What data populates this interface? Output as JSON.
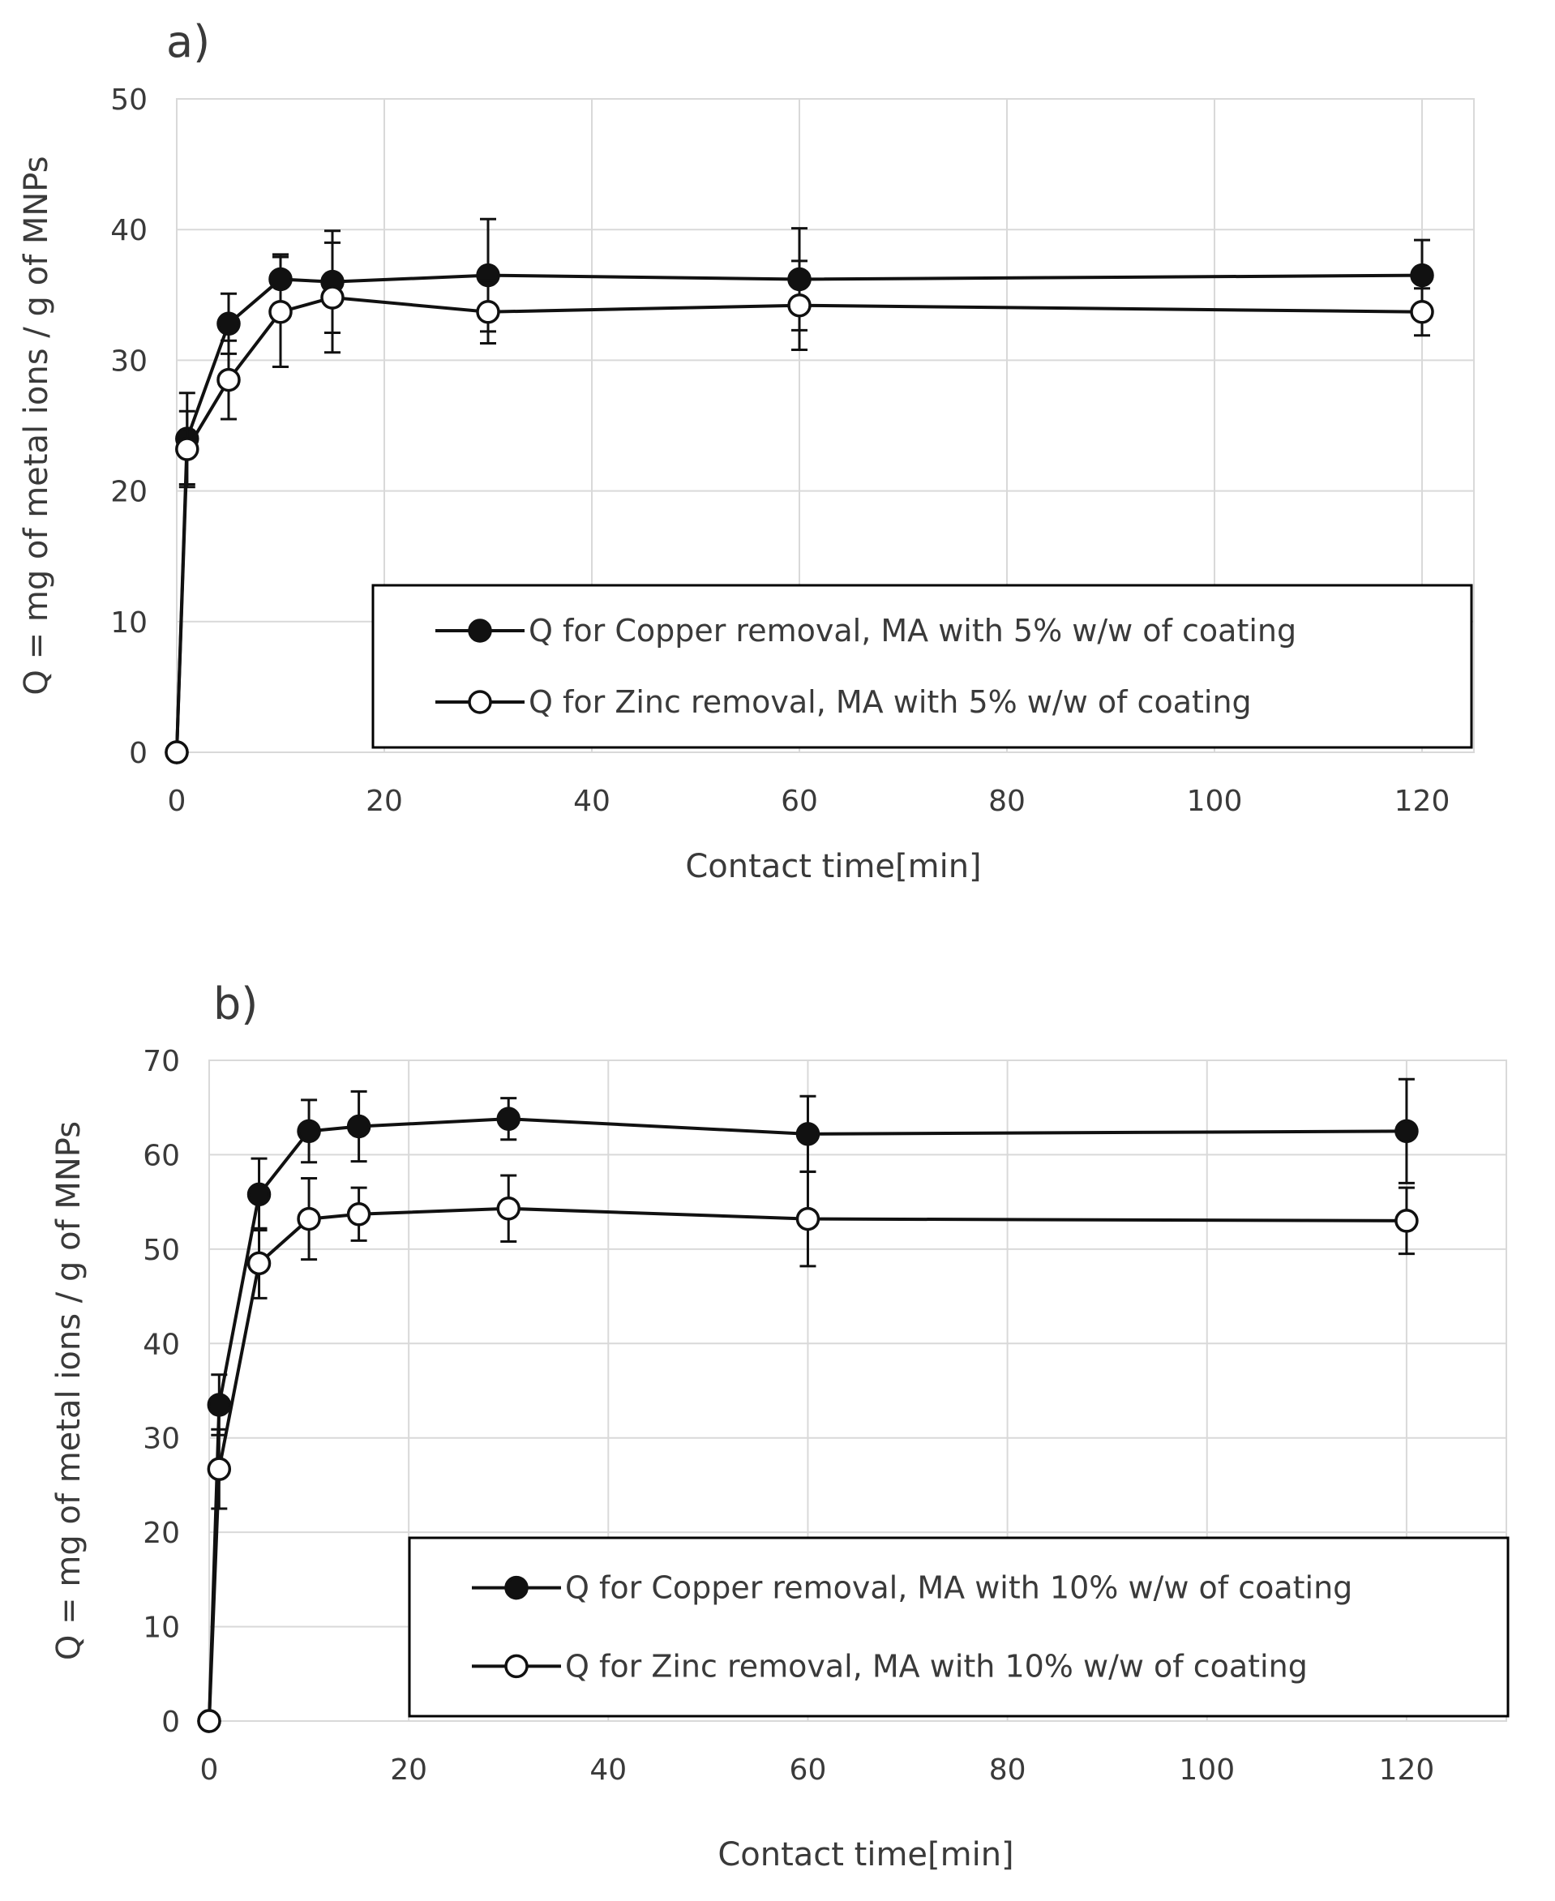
{
  "chart_data": [
    {
      "type": "line",
      "panel_label": "a)",
      "xlabel": "Contact time[min]",
      "ylabel": "Q = mg of metal ions / g of MNPs",
      "xlim": [
        0,
        125
      ],
      "ylim": [
        0,
        50
      ],
      "xticks": [
        0,
        20,
        40,
        60,
        80,
        100,
        120
      ],
      "yticks": [
        0,
        10,
        20,
        30,
        40,
        50
      ],
      "grid": true,
      "legend_position": "lower-right",
      "series": [
        {
          "name": "Q for Copper removal, MA with 5% w/w of coating",
          "marker": "filled-circle",
          "x": [
            0,
            1,
            5,
            10,
            15,
            30,
            60,
            120
          ],
          "y": [
            0,
            24.0,
            32.8,
            36.2,
            36.0,
            36.5,
            36.2,
            36.5
          ],
          "err": [
            0,
            3.5,
            2.3,
            1.9,
            3.9,
            4.3,
            3.9,
            2.7
          ]
        },
        {
          "name": "Q for Zinc removal, MA with 5% w/w of coating",
          "marker": "open-circle",
          "x": [
            0,
            1,
            5,
            10,
            15,
            30,
            60,
            120
          ],
          "y": [
            0,
            23.2,
            28.5,
            33.7,
            34.8,
            33.7,
            34.2,
            33.7
          ],
          "err": [
            0,
            2.9,
            3.0,
            4.2,
            4.2,
            2.4,
            3.4,
            1.8
          ]
        }
      ]
    },
    {
      "type": "line",
      "panel_label": "b)",
      "xlabel": "Contact time[min]",
      "ylabel": "Q = mg of metal ions / g of MNPs",
      "xlim": [
        0,
        130
      ],
      "ylim": [
        0,
        70
      ],
      "xticks": [
        0,
        20,
        40,
        60,
        80,
        100,
        120
      ],
      "yticks": [
        0,
        10,
        20,
        30,
        40,
        50,
        60,
        70
      ],
      "grid": true,
      "legend_position": "lower-right",
      "series": [
        {
          "name": "Q for Copper removal, MA with 10% w/w of coating",
          "marker": "filled-circle",
          "x": [
            0,
            1,
            5,
            10,
            15,
            30,
            60,
            120
          ],
          "y": [
            0,
            33.5,
            55.8,
            62.5,
            63.0,
            63.8,
            62.2,
            62.5
          ],
          "err": [
            0,
            3.2,
            3.8,
            3.3,
            3.7,
            2.2,
            4.0,
            5.5
          ]
        },
        {
          "name": "Q for Zinc removal, MA with 10% w/w of coating",
          "marker": "open-circle",
          "x": [
            0,
            1,
            5,
            10,
            15,
            30,
            60,
            120
          ],
          "y": [
            0,
            26.7,
            48.5,
            53.2,
            53.7,
            54.3,
            53.2,
            53.0
          ],
          "err": [
            0,
            4.2,
            3.7,
            4.3,
            2.8,
            3.5,
            5.0,
            3.5
          ]
        }
      ]
    }
  ]
}
